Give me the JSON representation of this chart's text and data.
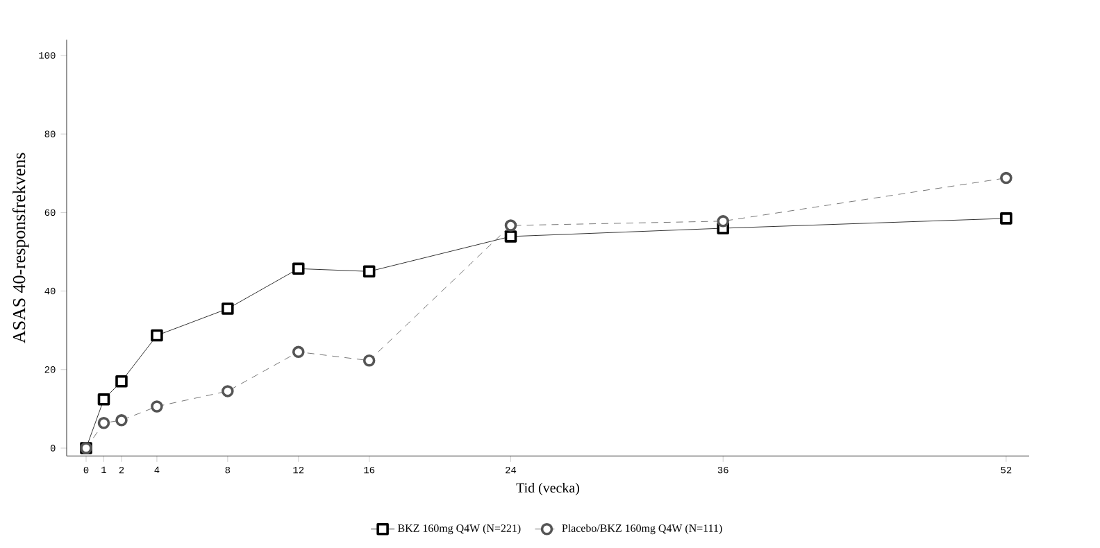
{
  "chart_data": {
    "type": "line",
    "xlabel": "Tid (vecka)",
    "ylabel": "ASAS 40-responsfrekvens",
    "xlim": [
      -1.1,
      53.3
    ],
    "ylim": [
      -2,
      104
    ],
    "xticks": [
      0,
      1,
      2,
      4,
      8,
      12,
      16,
      24,
      36,
      52
    ],
    "yticks": [
      0,
      20,
      40,
      60,
      80,
      100
    ],
    "grid": false,
    "legend": "bottom",
    "series": [
      {
        "name": "BKZ 160mg Q4W (N=221)",
        "color": "#000000",
        "marker": "square",
        "line_style": "solid",
        "x": [
          0,
          1,
          2,
          4,
          8,
          12,
          16,
          24,
          36,
          52
        ],
        "values": [
          0,
          12.4,
          17,
          28.7,
          35.5,
          45.7,
          45,
          53.9,
          56,
          58.5
        ]
      },
      {
        "name": "Placebo/BKZ 160mg Q4W (N=111)",
        "color": "#555555",
        "marker": "circle",
        "line_style": "dashed",
        "x": [
          0,
          1,
          2,
          4,
          8,
          12,
          16,
          24,
          36,
          52
        ],
        "values": [
          0,
          6.4,
          7.1,
          10.6,
          14.5,
          24.5,
          22.3,
          56.7,
          57.8,
          68.8
        ]
      }
    ]
  }
}
